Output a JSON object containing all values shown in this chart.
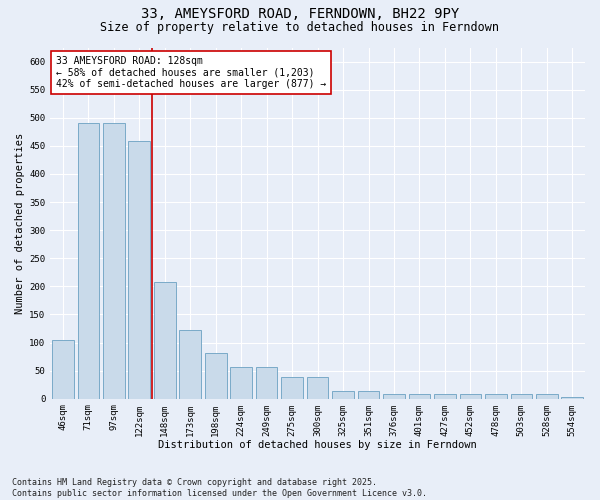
{
  "title": "33, AMEYSFORD ROAD, FERNDOWN, BH22 9PY",
  "subtitle": "Size of property relative to detached houses in Ferndown",
  "xlabel": "Distribution of detached houses by size in Ferndown",
  "ylabel": "Number of detached properties",
  "categories": [
    "46sqm",
    "71sqm",
    "97sqm",
    "122sqm",
    "148sqm",
    "173sqm",
    "198sqm",
    "224sqm",
    "249sqm",
    "275sqm",
    "300sqm",
    "325sqm",
    "351sqm",
    "376sqm",
    "401sqm",
    "427sqm",
    "452sqm",
    "478sqm",
    "503sqm",
    "528sqm",
    "554sqm"
  ],
  "values": [
    105,
    490,
    490,
    458,
    207,
    122,
    82,
    57,
    57,
    38,
    38,
    13,
    13,
    9,
    9,
    9,
    9,
    9,
    9,
    9,
    3
  ],
  "bar_color": "#c9daea",
  "bar_edge_color": "#7aaac8",
  "vline_index": 3,
  "vline_color": "#cc0000",
  "annotation_text": "33 AMEYSFORD ROAD: 128sqm\n← 58% of detached houses are smaller (1,203)\n42% of semi-detached houses are larger (877) →",
  "annotation_box_edge_color": "#cc0000",
  "ylim": [
    0,
    625
  ],
  "yticks": [
    0,
    50,
    100,
    150,
    200,
    250,
    300,
    350,
    400,
    450,
    500,
    550,
    600
  ],
  "footer": "Contains HM Land Registry data © Crown copyright and database right 2025.\nContains public sector information licensed under the Open Government Licence v3.0.",
  "bg_color": "#e8eef8",
  "plot_bg_color": "#e8eef8",
  "grid_color": "#ffffff",
  "title_fontsize": 10,
  "subtitle_fontsize": 8.5,
  "axis_label_fontsize": 7.5,
  "tick_fontsize": 6.5,
  "annotation_fontsize": 7,
  "footer_fontsize": 6
}
